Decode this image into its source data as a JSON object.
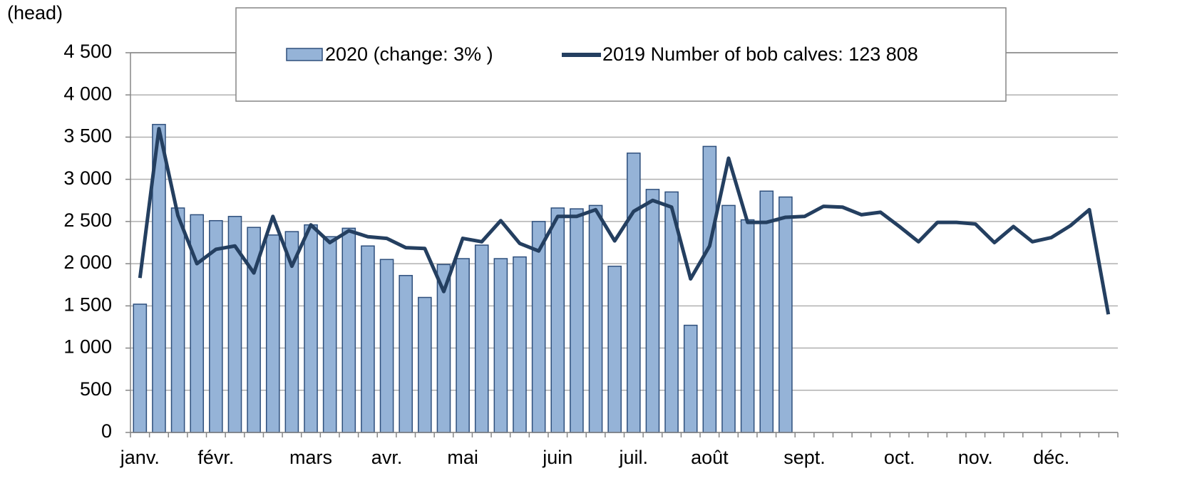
{
  "chart_data": {
    "type": "bar_line",
    "y_axis_label": "(head)",
    "categories": [
      "janv.",
      null,
      null,
      null,
      "févr.",
      null,
      null,
      null,
      null,
      "mars",
      null,
      null,
      null,
      "avr.",
      null,
      null,
      null,
      "mai",
      null,
      null,
      null,
      null,
      "juin",
      null,
      null,
      null,
      "juil.",
      null,
      null,
      null,
      "août",
      null,
      null,
      null,
      null,
      "sept.",
      null,
      null,
      null,
      null,
      "oct.",
      null,
      null,
      null,
      "nov.",
      null,
      null,
      null,
      "déc.",
      null,
      null,
      null
    ],
    "series": [
      {
        "name": "2020 (change: 3% )",
        "type": "bar",
        "color": "#95b3d7",
        "edge_color": "#2e4f7c",
        "values": [
          1520,
          3650,
          2660,
          2580,
          2510,
          2560,
          2430,
          2340,
          2380,
          2460,
          2320,
          2420,
          2210,
          2050,
          1860,
          1600,
          1990,
          2060,
          2220,
          2060,
          2080,
          2500,
          2660,
          2650,
          2690,
          1970,
          3310,
          2880,
          2850,
          1270,
          3390,
          2690,
          2520,
          2860,
          2790,
          null,
          null,
          null,
          null,
          null,
          null,
          null,
          null,
          null,
          null,
          null,
          null,
          null,
          null,
          null,
          null,
          null
        ]
      },
      {
        "name": "2019 Number of bob calves: 123 808",
        "type": "line",
        "color": "#243f60",
        "values": [
          1830,
          3600,
          2570,
          2000,
          2170,
          2210,
          1890,
          2560,
          1970,
          2460,
          2250,
          2390,
          2320,
          2300,
          2190,
          2180,
          1670,
          2300,
          2260,
          2510,
          2240,
          2150,
          2560,
          2560,
          2640,
          2270,
          2620,
          2750,
          2670,
          1820,
          2210,
          3250,
          2490,
          2490,
          2550,
          2560,
          2680,
          2670,
          2580,
          2610,
          2440,
          2260,
          2490,
          2490,
          2470,
          2250,
          2440,
          2260,
          2310,
          2450,
          2640,
          1400
        ]
      }
    ],
    "ylim": [
      0,
      4500
    ],
    "yticks": [
      0,
      500,
      {
        "value": 1000,
        "label": "1 000"
      },
      {
        "value": 1500,
        "label": "1 500"
      },
      {
        "value": 2000,
        "label": "2 000"
      },
      {
        "value": 2500,
        "label": "2 500"
      },
      {
        "value": 3000,
        "label": "3 000"
      },
      {
        "value": 3500,
        "label": "3 500"
      },
      {
        "value": 4000,
        "label": "4 000"
      },
      {
        "value": 4500,
        "label": "4 500"
      }
    ],
    "grid": true,
    "legend": "top"
  }
}
